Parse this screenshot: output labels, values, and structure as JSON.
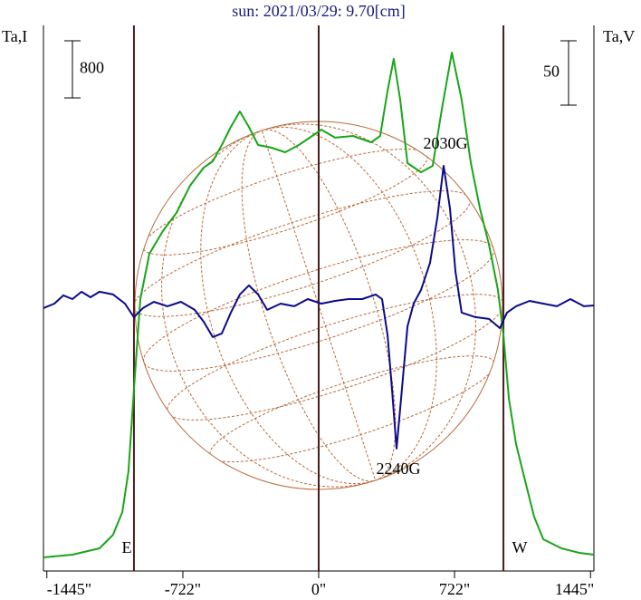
{
  "chart_data": {
    "type": "line",
    "title": "sun: 2021/03/29: 9.70[cm]",
    "ylabel": "Ta,I",
    "y2label": "Ta,V",
    "xlim": [
      -1463,
      1463
    ],
    "ylim": [
      0,
      7645
    ],
    "y2lim": [
      -204.2,
      219.6
    ],
    "xticks": [
      {
        "value": -1445,
        "label": "-1445\""
      },
      {
        "value": -722,
        "label": "-722\""
      },
      {
        "value": 0,
        "label": "0\""
      },
      {
        "value": 722,
        "label": "722\""
      },
      {
        "value": 1445,
        "label": "1445\""
      }
    ],
    "vlines": [
      {
        "value": -982,
        "label": "E"
      },
      {
        "value": 0
      },
      {
        "value": 982,
        "label": "W"
      }
    ],
    "scale_bars": [
      {
        "axis": "y",
        "value": 800
      },
      {
        "axis": "y2",
        "value": 50
      }
    ],
    "annotations": [
      "2030G",
      "2240G"
    ],
    "series": [
      {
        "color": "#1aa51a",
        "axis": "y",
        "x": [
          -1463,
          -1309,
          -1165,
          -1093,
          -1044,
          -1011,
          -982,
          -948,
          -900,
          -828,
          -756,
          -684,
          -611,
          -563,
          -515,
          -467,
          -419,
          -371,
          -322,
          -250,
          -178,
          -106,
          -34,
          14,
          87,
          183,
          279,
          327,
          366,
          399,
          433,
          472,
          544,
          606,
          655,
          708,
          760,
          809,
          857,
          905,
          953,
          982,
          1011,
          1049,
          1097,
          1145,
          1194,
          1290,
          1386,
          1463
        ],
        "values": [
          191,
          229,
          318,
          508,
          826,
          1397,
          2540,
          3810,
          4445,
          4763,
          5017,
          5398,
          5652,
          5740,
          5969,
          6223,
          6439,
          6223,
          5969,
          5931,
          5867,
          5969,
          6096,
          6185,
          6071,
          6096,
          6007,
          6096,
          6731,
          7176,
          6604,
          5715,
          5588,
          5677,
          6477,
          7264,
          6604,
          5715,
          5080,
          4572,
          3937,
          3302,
          2413,
          1778,
          1270,
          762,
          445,
          318,
          254,
          229
        ]
      },
      {
        "color": "#0a0a8c",
        "axis": "y2",
        "x": [
          -1463,
          -1405,
          -1357,
          -1309,
          -1261,
          -1213,
          -1165,
          -1093,
          -1030,
          -982,
          -934,
          -876,
          -804,
          -732,
          -659,
          -611,
          -563,
          -515,
          -467,
          -419,
          -371,
          -322,
          -274,
          -202,
          -130,
          -58,
          14,
          87,
          159,
          231,
          303,
          337,
          366,
          390,
          414,
          438,
          472,
          505,
          544,
          592,
          631,
          664,
          698,
          727,
          760,
          833,
          905,
          963,
          1001,
          1049,
          1121,
          1194,
          1266,
          1338,
          1410,
          1463
        ],
        "values": [
          0,
          3.5,
          9.9,
          7.0,
          12.7,
          8.4,
          12.7,
          10.6,
          3.5,
          -7.0,
          0,
          4.9,
          1.4,
          4.9,
          -1.4,
          -10.6,
          -22.5,
          -19.7,
          -3.5,
          10.6,
          17.6,
          10.6,
          -1.4,
          3.5,
          1.4,
          7.0,
          3.5,
          5.6,
          7.0,
          7.0,
          10.6,
          7.0,
          -21.1,
          -63.4,
          -109.1,
          -70.4,
          -14.1,
          3.5,
          14.1,
          35.2,
          70.4,
          110.5,
          77.4,
          28.2,
          -3.5,
          -7.0,
          -8.4,
          -15.5,
          -3.5,
          1.4,
          5.6,
          3.5,
          1.4,
          7.0,
          1.4,
          2.1
        ]
      }
    ]
  }
}
